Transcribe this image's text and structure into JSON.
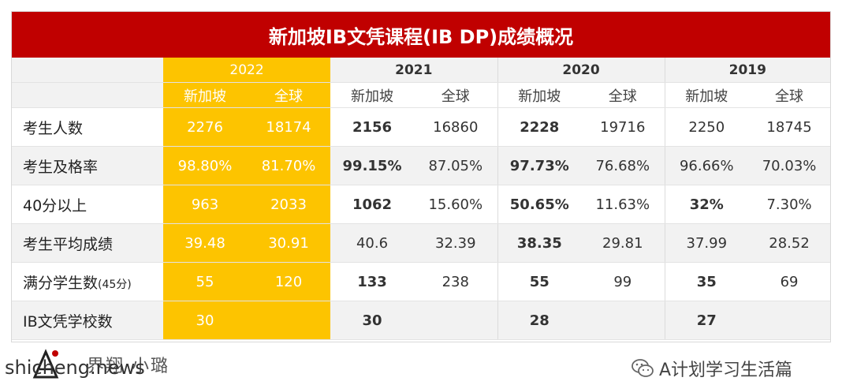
{
  "title": "新加坡IB文凭课程(IB DP)成绩概况",
  "years": [
    "2022",
    "2021",
    "2020",
    "2019"
  ],
  "subheaders": [
    "新加坡",
    "全球"
  ],
  "rows": [
    {
      "label": "考生人数",
      "values": [
        "2276",
        "18174",
        "2156",
        "16860",
        "2228",
        "19716",
        "2250",
        "18745"
      ]
    },
    {
      "label": "考生及格率",
      "values": [
        "98.80%",
        "81.70%",
        "99.15%",
        "87.05%",
        "97.73%",
        "76.68%",
        "96.66%",
        "70.03%"
      ]
    },
    {
      "label": "40分以上",
      "values": [
        "963",
        "2033",
        "1062",
        "15.60%",
        "50.65%",
        "11.63%",
        "32%",
        "7.30%"
      ]
    },
    {
      "label": "考生平均成绩",
      "values": [
        "39.48",
        "30.91",
        "40.6",
        "32.39",
        "38.35",
        "29.81",
        "37.99",
        "28.52"
      ]
    },
    {
      "label": "满分学生数",
      "label_suffix": "(45分)",
      "values": [
        "55",
        "120",
        "133",
        "238",
        "55",
        "99",
        "35",
        "69"
      ]
    },
    {
      "label": "IB文凭学校数",
      "values": [
        "30",
        "",
        "30",
        "",
        "28",
        "",
        "27",
        ""
      ]
    }
  ],
  "footer": {
    "watermark": "shicheng.news",
    "brand_text": "界翔·小璐",
    "account": "A计划学习生活篇"
  },
  "colors": {
    "title_bg": "#c00000",
    "highlight": "#fdc400",
    "alt_row": "#f2f2f2"
  }
}
